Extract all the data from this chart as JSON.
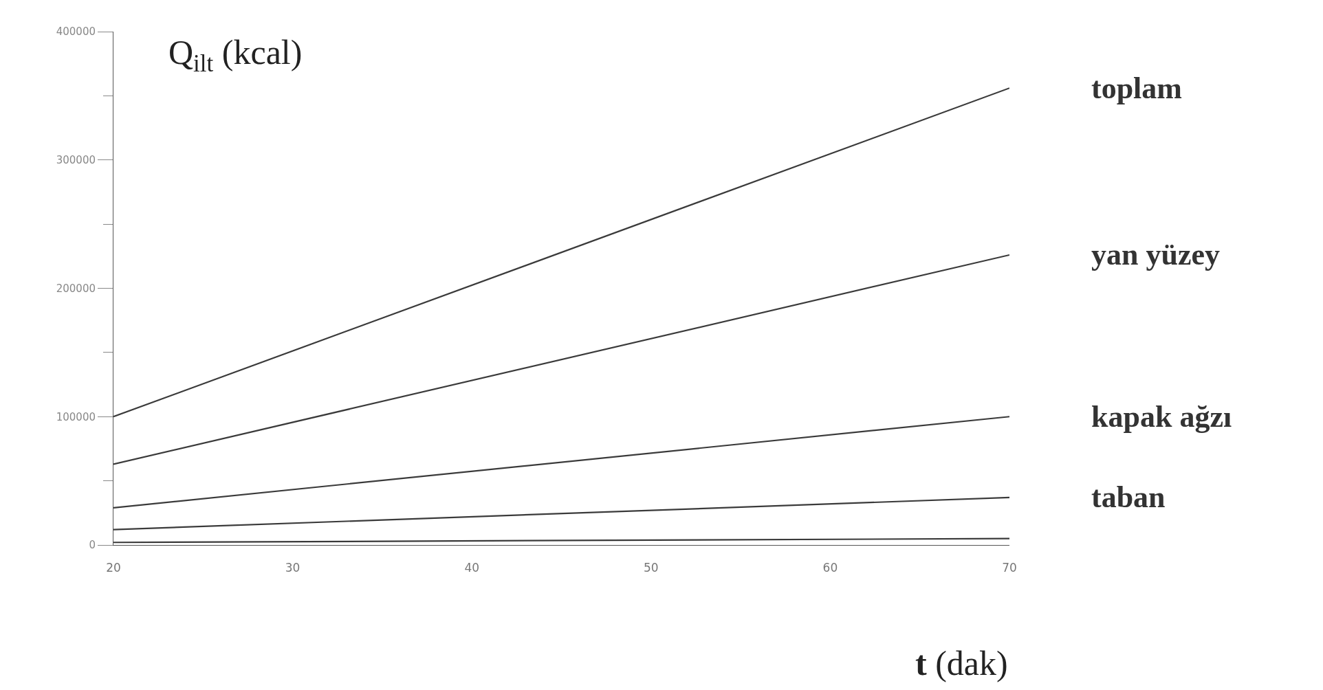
{
  "chart_data": {
    "type": "line",
    "ylabel": "Q$_{ilt}$ (kcal)",
    "xlabel": "t (dak)",
    "x": [
      20,
      70
    ],
    "series": [
      {
        "name": "toplam",
        "color": "#3a3a3a",
        "values": [
          100000,
          356000
        ]
      },
      {
        "name": "yan yüzey",
        "color": "#3a3a3a",
        "values": [
          63000,
          226000
        ]
      },
      {
        "name": "kapak ağzı",
        "color": "#3a3a3a",
        "values": [
          29000,
          100000
        ]
      },
      {
        "name": "taban",
        "color": "#3a3a3a",
        "values": [
          12000,
          37000
        ]
      },
      {
        "color": "#3a3a3a",
        "values": [
          2000,
          5000
        ]
      }
    ],
    "xlim": [
      20,
      70
    ],
    "xticks": [
      20,
      30,
      40,
      50,
      60,
      70
    ],
    "ylim": [
      0,
      400000
    ],
    "yticks": [
      0,
      {
        "value": 50000,
        "label": null
      },
      100000,
      {
        "value": 150000,
        "label": null
      },
      200000,
      {
        "value": 250000,
        "label": null
      },
      300000,
      {
        "value": 350000,
        "label": null
      },
      400000
    ],
    "legend": false,
    "marker": "none",
    "line_style": "solid"
  }
}
